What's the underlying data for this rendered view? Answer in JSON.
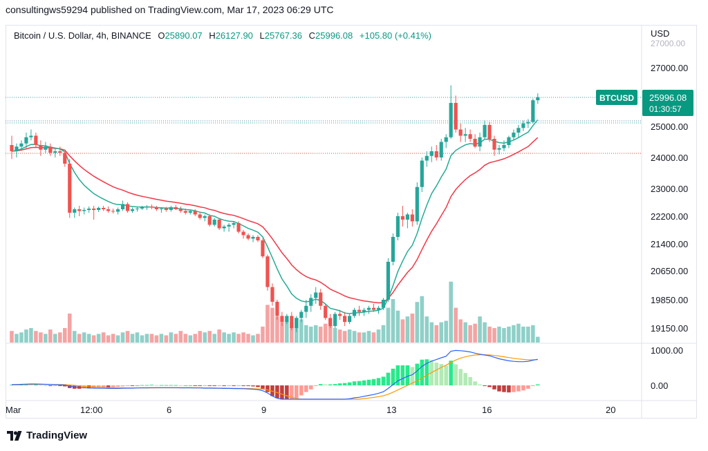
{
  "header": {
    "published": "consultingws59294 published on TradingView.com, Mar 17, 2023 06:29 UTC"
  },
  "legend": {
    "symbol": "Bitcoin / U.S. Dollar, 4h, BINANCE",
    "o_label": "O",
    "o": "25890.07",
    "h_label": "H",
    "h": "26127.90",
    "l_label": "L",
    "l": "25767.36",
    "c_label": "C",
    "c": "25996.08",
    "change": "+105.80 (+0.41%)"
  },
  "price_axis": {
    "currency": "USD",
    "ticks": [
      "27000.00",
      "25000.00",
      "24000.00",
      "23000.00",
      "22200.00",
      "21400.00",
      "20650.00",
      "19850.00",
      "19150.00"
    ],
    "last_label": "BTCUSD",
    "last_price": "25996.08",
    "countdown": "01:30:57"
  },
  "macd_axis": {
    "ticks": [
      "1000.00",
      "0.00"
    ]
  },
  "time_axis": {
    "ticks": [
      "Mar",
      "12:00",
      "6",
      "9",
      "13",
      "16",
      "20"
    ]
  },
  "footer": {
    "brand": "TradingView"
  },
  "colors": {
    "up": "#26a69a",
    "down": "#ef5350",
    "fast_ma": "#22ab94",
    "slow_ma": "#f23645",
    "vol_up": "#8fd0c8",
    "vol_down": "#f5a3a3",
    "macd": "#2962ff",
    "signal": "#ff9800",
    "hist_up_strong": "#00e676",
    "hist_up_weak": "#a5e6a7",
    "hist_down_strong": "#b71c1c",
    "hist_down_weak": "#ff8a80",
    "last_price_tag": "#089981"
  },
  "chart_data": {
    "type": "candlestick",
    "title": "Bitcoin / U.S. Dollar, 4h, BINANCE",
    "ylabel": "USD",
    "ylim": [
      18600,
      27800
    ],
    "grid": false,
    "candles": [
      [
        24400,
        24700,
        23950,
        24200
      ],
      [
        24200,
        24450,
        24000,
        24350
      ],
      [
        24350,
        24550,
        24250,
        24450
      ],
      [
        24450,
        24800,
        24300,
        24650
      ],
      [
        24650,
        24900,
        24550,
        24700
      ],
      [
        24700,
        24800,
        24300,
        24400
      ],
      [
        24400,
        24550,
        24050,
        24250
      ],
      [
        24250,
        24500,
        24150,
        24350
      ],
      [
        24350,
        24450,
        24050,
        24150
      ],
      [
        24150,
        24300,
        24000,
        24200
      ],
      [
        24200,
        24350,
        24050,
        24150
      ],
      [
        24150,
        24200,
        23700,
        23800
      ],
      [
        23800,
        23950,
        22150,
        22300
      ],
      [
        22300,
        22450,
        22150,
        22400
      ],
      [
        22400,
        22500,
        22200,
        22350
      ],
      [
        22350,
        22450,
        22250,
        22380
      ],
      [
        22380,
        22480,
        22300,
        22420
      ],
      [
        22420,
        22500,
        22100,
        22380
      ],
      [
        22380,
        22480,
        22320,
        22440
      ],
      [
        22440,
        22500,
        22350,
        22400
      ],
      [
        22400,
        22480,
        22300,
        22350
      ],
      [
        22350,
        22420,
        22280,
        22330
      ],
      [
        22330,
        22450,
        22250,
        22400
      ],
      [
        22400,
        22650,
        22350,
        22550
      ],
      [
        22550,
        22600,
        22300,
        22350
      ],
      [
        22350,
        22450,
        22300,
        22400
      ],
      [
        22400,
        22480,
        22330,
        22420
      ],
      [
        22420,
        22500,
        22380,
        22450
      ],
      [
        22450,
        22520,
        22380,
        22480
      ],
      [
        22480,
        22540,
        22400,
        22450
      ],
      [
        22450,
        22500,
        22350,
        22400
      ],
      [
        22400,
        22450,
        22300,
        22420
      ],
      [
        22420,
        22470,
        22330,
        22380
      ],
      [
        22380,
        22500,
        22330,
        22460
      ],
      [
        22460,
        22520,
        22380,
        22400
      ],
      [
        22400,
        22480,
        22300,
        22350
      ],
      [
        22350,
        22420,
        22250,
        22300
      ],
      [
        22300,
        22380,
        22250,
        22350
      ],
      [
        22350,
        22400,
        22200,
        22250
      ],
      [
        22250,
        22330,
        22100,
        22150
      ],
      [
        22150,
        22250,
        22050,
        22200
      ],
      [
        22200,
        22250,
        21900,
        21950
      ],
      [
        21950,
        22150,
        21900,
        22100
      ],
      [
        22100,
        22150,
        21800,
        21850
      ],
      [
        21850,
        21950,
        21750,
        21900
      ],
      [
        21900,
        22000,
        21750,
        21950
      ],
      [
        21950,
        22050,
        21850,
        22000
      ],
      [
        22000,
        22050,
        21700,
        21750
      ],
      [
        21750,
        21800,
        21550,
        21650
      ],
      [
        21650,
        21700,
        21500,
        21550
      ],
      [
        21550,
        21650,
        21450,
        21600
      ],
      [
        21600,
        21650,
        21450,
        21500
      ],
      [
        21500,
        21550,
        21000,
        21050
      ],
      [
        21050,
        21100,
        20100,
        20200
      ],
      [
        20200,
        20300,
        19700,
        19800
      ],
      [
        19800,
        19850,
        19350,
        19450
      ],
      [
        19450,
        19550,
        19200,
        19300
      ],
      [
        19300,
        19500,
        19250,
        19450
      ],
      [
        19450,
        19550,
        19100,
        19150
      ],
      [
        19150,
        19450,
        19050,
        19400
      ],
      [
        19400,
        19600,
        19300,
        19550
      ],
      [
        19550,
        19850,
        19400,
        19700
      ],
      [
        19700,
        20000,
        19550,
        19900
      ],
      [
        19900,
        20200,
        19750,
        20050
      ],
      [
        20050,
        20150,
        19600,
        19700
      ],
      [
        19700,
        19750,
        19350,
        19400
      ],
      [
        19400,
        19500,
        19150,
        19200
      ],
      [
        19200,
        19550,
        19150,
        19500
      ],
      [
        19500,
        19600,
        19350,
        19450
      ],
      [
        19450,
        19550,
        19200,
        19300
      ],
      [
        19300,
        19500,
        19250,
        19450
      ],
      [
        19450,
        19650,
        19400,
        19600
      ],
      [
        19600,
        19700,
        19450,
        19550
      ],
      [
        19550,
        19650,
        19450,
        19600
      ],
      [
        19600,
        19700,
        19500,
        19650
      ],
      [
        19650,
        19750,
        19550,
        19600
      ],
      [
        19600,
        19700,
        19500,
        19650
      ],
      [
        19650,
        19900,
        19600,
        19850
      ],
      [
        19850,
        21000,
        19800,
        20900
      ],
      [
        20900,
        21700,
        20800,
        21600
      ],
      [
        21600,
        22300,
        21500,
        22200
      ],
      [
        22200,
        22500,
        21900,
        22100
      ],
      [
        22100,
        22300,
        21850,
        22250
      ],
      [
        22250,
        22400,
        21900,
        22050
      ],
      [
        22050,
        23200,
        21950,
        23050
      ],
      [
        23050,
        24000,
        22900,
        23900
      ],
      [
        23900,
        24200,
        23700,
        24050
      ],
      [
        24050,
        24350,
        23850,
        24200
      ],
      [
        24200,
        24400,
        23900,
        24000
      ],
      [
        24000,
        24600,
        23900,
        24500
      ],
      [
        24500,
        24750,
        24300,
        24650
      ],
      [
        24650,
        26400,
        24600,
        25800
      ],
      [
        25800,
        26050,
        24800,
        24900
      ],
      [
        24900,
        25100,
        24500,
        24700
      ],
      [
        24700,
        24950,
        24500,
        24750
      ],
      [
        24750,
        24900,
        24500,
        24600
      ],
      [
        24600,
        24750,
        24300,
        24350
      ],
      [
        24350,
        24800,
        24200,
        24650
      ],
      [
        24650,
        25200,
        24600,
        25050
      ],
      [
        25050,
        25150,
        24500,
        24600
      ],
      [
        24600,
        24700,
        24050,
        24250
      ],
      [
        24250,
        24400,
        24100,
        24300
      ],
      [
        24300,
        24550,
        24200,
        24400
      ],
      [
        24400,
        24700,
        24300,
        24650
      ],
      [
        24650,
        24900,
        24550,
        24800
      ],
      [
        24800,
        25050,
        24650,
        24950
      ],
      [
        24950,
        25200,
        24850,
        25100
      ],
      [
        25100,
        25250,
        24950,
        25150
      ],
      [
        25150,
        25950,
        25100,
        25890
      ],
      [
        25890.07,
        26127.9,
        25767.36,
        25996.08
      ]
    ],
    "volume_relative": [
      0.4,
      0.3,
      0.35,
      0.45,
      0.5,
      0.4,
      0.35,
      0.3,
      0.45,
      0.3,
      0.35,
      0.5,
      1.0,
      0.4,
      0.3,
      0.35,
      0.3,
      0.25,
      0.3,
      0.35,
      0.25,
      0.3,
      0.25,
      0.35,
      0.4,
      0.3,
      0.35,
      0.25,
      0.3,
      0.3,
      0.25,
      0.3,
      0.25,
      0.35,
      0.3,
      0.4,
      0.3,
      0.25,
      0.3,
      0.4,
      0.35,
      0.4,
      0.3,
      0.45,
      0.35,
      0.3,
      0.35,
      0.3,
      0.35,
      0.3,
      0.25,
      0.3,
      0.55,
      1.3,
      1.2,
      0.9,
      0.7,
      0.75,
      0.7,
      0.85,
      0.8,
      0.6,
      0.55,
      0.6,
      0.55,
      0.65,
      0.6,
      0.5,
      0.45,
      0.4,
      0.45,
      0.4,
      0.35,
      0.35,
      0.4,
      0.35,
      0.45,
      0.6,
      1.2,
      1.5,
      1.1,
      0.8,
      0.9,
      1.0,
      1.4,
      1.6,
      0.9,
      0.7,
      0.6,
      0.7,
      0.75,
      2.1,
      1.2,
      0.8,
      0.7,
      0.6,
      0.65,
      0.9,
      0.7,
      0.55,
      0.5,
      0.55,
      0.5,
      0.55,
      0.6,
      0.65,
      0.55,
      0.55,
      0.6,
      0.2
    ],
    "macd_relative": {
      "macd": [
        0.05,
        0.06,
        0.07,
        0.08,
        0.09,
        0.09,
        0.08,
        0.07,
        0.06,
        0.05,
        0.04,
        0.02,
        -0.05,
        -0.1,
        -0.13,
        -0.15,
        -0.17,
        -0.18,
        -0.19,
        -0.19,
        -0.2,
        -0.2,
        -0.2,
        -0.19,
        -0.18,
        -0.18,
        -0.17,
        -0.16,
        -0.16,
        -0.15,
        -0.15,
        -0.15,
        -0.15,
        -0.15,
        -0.15,
        -0.16,
        -0.16,
        -0.16,
        -0.17,
        -0.17,
        -0.18,
        -0.18,
        -0.19,
        -0.19,
        -0.2,
        -0.2,
        -0.21,
        -0.21,
        -0.22,
        -0.23,
        -0.25,
        -0.28,
        -0.35,
        -0.5,
        -0.7,
        -0.85,
        -1.0,
        -1.1,
        -1.2,
        -1.25,
        -1.25,
        -1.2,
        -1.15,
        -1.05,
        -1.0,
        -1.0,
        -1.0,
        -0.98,
        -0.95,
        -0.92,
        -0.88,
        -0.82,
        -0.78,
        -0.72,
        -0.66,
        -0.6,
        -0.52,
        -0.42,
        -0.2,
        0.05,
        0.3,
        0.45,
        0.6,
        0.7,
        0.95,
        1.25,
        1.45,
        1.6,
        1.7,
        1.82,
        1.92,
        2.25,
        2.3,
        2.28,
        2.25,
        2.2,
        2.12,
        2.05,
        2.0,
        1.95,
        1.85,
        1.75,
        1.68,
        1.62,
        1.58,
        1.56,
        1.56,
        1.58,
        1.66,
        1.72
      ],
      "signal": [
        0.03,
        0.04,
        0.05,
        0.06,
        0.07,
        0.07,
        0.07,
        0.07,
        0.07,
        0.06,
        0.06,
        0.05,
        0.03,
        0.0,
        -0.03,
        -0.06,
        -0.08,
        -0.1,
        -0.12,
        -0.13,
        -0.14,
        -0.15,
        -0.16,
        -0.16,
        -0.17,
        -0.17,
        -0.17,
        -0.17,
        -0.17,
        -0.17,
        -0.16,
        -0.16,
        -0.16,
        -0.16,
        -0.16,
        -0.16,
        -0.16,
        -0.16,
        -0.16,
        -0.16,
        -0.17,
        -0.17,
        -0.17,
        -0.18,
        -0.18,
        -0.19,
        -0.19,
        -0.2,
        -0.2,
        -0.21,
        -0.22,
        -0.23,
        -0.25,
        -0.3,
        -0.38,
        -0.47,
        -0.58,
        -0.68,
        -0.78,
        -0.87,
        -0.95,
        -1.0,
        -1.03,
        -1.04,
        -1.04,
        -1.03,
        -1.03,
        -1.02,
        -1.01,
        -0.99,
        -0.97,
        -0.94,
        -0.91,
        -0.87,
        -0.83,
        -0.79,
        -0.74,
        -0.68,
        -0.58,
        -0.45,
        -0.3,
        -0.15,
        -0.0,
        0.15,
        0.3,
        0.48,
        0.67,
        0.85,
        1.02,
        1.18,
        1.33,
        1.51,
        1.67,
        1.79,
        1.88,
        1.95,
        2.0,
        2.02,
        2.02,
        2.0,
        1.97,
        1.93,
        1.88,
        1.83,
        1.78,
        1.74,
        1.71,
        1.68,
        1.68,
        1.69
      ]
    }
  }
}
